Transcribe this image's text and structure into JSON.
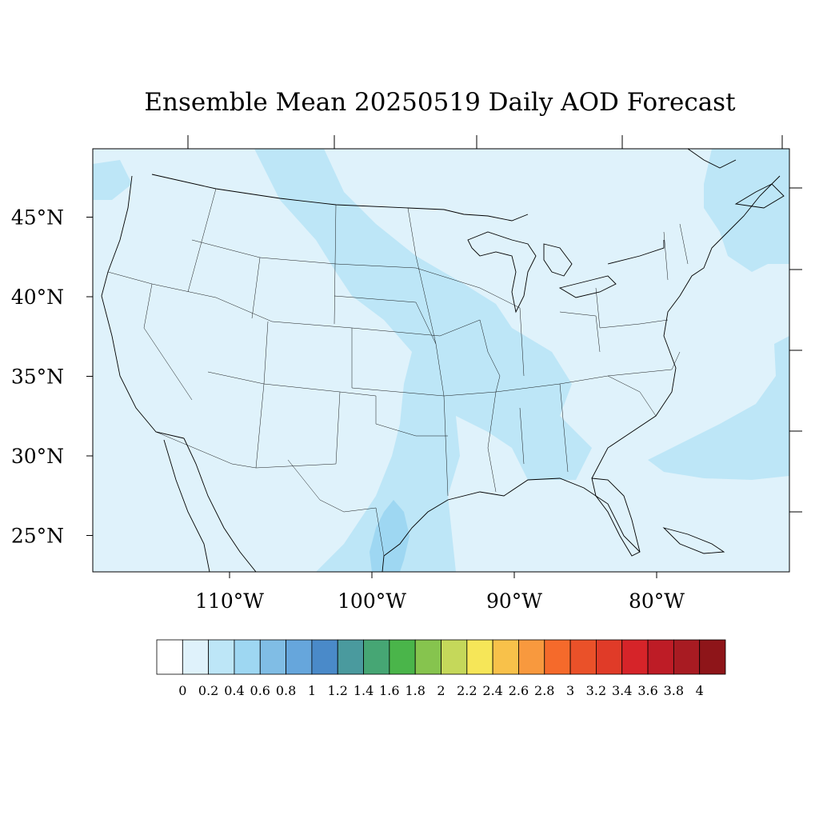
{
  "title": "Ensemble Mean 20250519 Daily AOD Forecast",
  "map": {
    "lat_labels": [
      "45°N",
      "40°N",
      "35°N",
      "30°N",
      "25°N"
    ],
    "lat_values": [
      45,
      40,
      35,
      30,
      25
    ],
    "lon_labels": [
      "110°W",
      "100°W",
      "90°W",
      "80°W"
    ],
    "lon_values": [
      -110,
      -100,
      -90,
      -80
    ],
    "background_color": "#dff2fb",
    "fields": [
      {
        "level": "0.2-0.4",
        "color": "#bde6f7"
      },
      {
        "level": "0.4-0.6",
        "color": "#9ed7f2"
      }
    ]
  },
  "colorbar": {
    "labels": [
      "0",
      "0.2",
      "0.4",
      "0.6",
      "0.8",
      "1",
      "1.2",
      "1.4",
      "1.6",
      "1.8",
      "2",
      "2.2",
      "2.4",
      "2.6",
      "2.8",
      "3",
      "3.2",
      "3.4",
      "3.6",
      "3.8",
      "4"
    ],
    "colors": [
      "#ffffff",
      "#dff2fb",
      "#bde6f7",
      "#9ed7f2",
      "#80bde5",
      "#66a6dc",
      "#4a8ac9",
      "#4a9a9e",
      "#46a674",
      "#4ab54a",
      "#86c44e",
      "#c5d85a",
      "#f6e658",
      "#f8c14a",
      "#f8993e",
      "#f56a2b",
      "#ea5129",
      "#e03b28",
      "#d62429",
      "#be1c26",
      "#a81b22",
      "#8e1519"
    ]
  }
}
